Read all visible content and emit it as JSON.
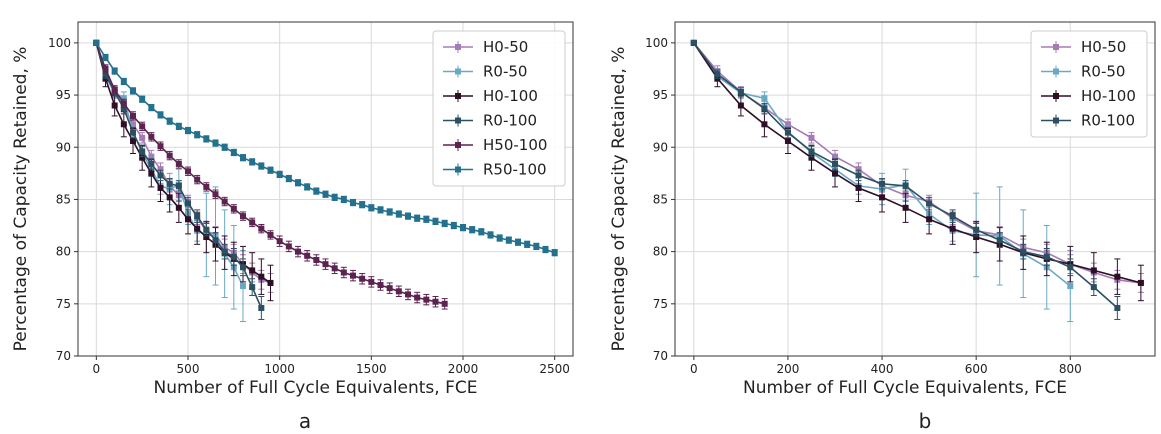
{
  "chart_data": [
    {
      "type": "line",
      "panel_label": "a",
      "xlabel": "Number of Full Cycle Equivalents, FCE",
      "ylabel": "Percentage of Capacity Retained, %",
      "xlim": [
        -100,
        2600
      ],
      "ylim": [
        70,
        102
      ],
      "xticks": [
        0,
        500,
        1000,
        1500,
        2000,
        2500
      ],
      "yticks": [
        70,
        75,
        80,
        85,
        90,
        95,
        100
      ],
      "grid": true,
      "legend_position": "top-right",
      "series": [
        {
          "name": "H0-50",
          "color": "#a57bb5",
          "marker": "square",
          "x": [
            0,
            50,
            100,
            150,
            200,
            250,
            300,
            350,
            400,
            450,
            500,
            550,
            600,
            650,
            700,
            750,
            800,
            850,
            900,
            950
          ],
          "y": [
            100,
            97.3,
            95.3,
            93.8,
            92.2,
            90.9,
            89.1,
            87.9,
            86.3,
            85.4,
            84.8,
            83.2,
            82.0,
            81.6,
            80.4,
            79.9,
            78.8,
            78.0,
            77.3,
            77.0
          ],
          "err": [
            0,
            0.5,
            0.5,
            0.6,
            0.5,
            0.5,
            0.6,
            0.6,
            0.6,
            0.6,
            0.6,
            0.6,
            0.8,
            0.8,
            0.8,
            0.8,
            0.9,
            0.9,
            0.9,
            0.9
          ]
        },
        {
          "name": "R0-50",
          "color": "#6aa8c4",
          "marker": "square",
          "x": [
            0,
            50,
            100,
            150,
            200,
            250,
            300,
            350,
            400,
            450,
            500,
            550,
            600,
            650,
            700,
            750,
            800
          ],
          "y": [
            100,
            96.8,
            95.2,
            94.7,
            91.5,
            89.5,
            87.9,
            86.3,
            86.0,
            86.4,
            83.6,
            82.0,
            81.6,
            81.5,
            79.8,
            78.5,
            76.7
          ],
          "err": [
            0,
            0.5,
            0.5,
            0.6,
            0.6,
            0.6,
            0.7,
            0.8,
            1.5,
            1.5,
            1.0,
            1.0,
            4.0,
            4.7,
            4.2,
            4.0,
            3.4
          ]
        },
        {
          "name": "H0-100",
          "color": "#2e0f26",
          "marker": "square",
          "x": [
            0,
            50,
            100,
            150,
            200,
            250,
            300,
            350,
            400,
            450,
            500,
            550,
            600,
            650,
            700,
            750,
            800,
            850,
            900,
            950
          ],
          "y": [
            100,
            96.6,
            94.0,
            92.2,
            90.6,
            89.0,
            87.5,
            86.1,
            85.2,
            84.2,
            83.1,
            82.2,
            81.4,
            80.7,
            79.9,
            79.3,
            78.8,
            78.2,
            77.6,
            77.0
          ],
          "err": [
            0,
            0.8,
            1.0,
            1.2,
            1.2,
            1.2,
            1.3,
            1.3,
            1.4,
            1.4,
            1.4,
            1.5,
            1.5,
            1.6,
            1.6,
            1.6,
            1.7,
            1.7,
            1.7,
            1.7
          ]
        },
        {
          "name": "R0-100",
          "color": "#2b5061",
          "marker": "square",
          "x": [
            0,
            50,
            100,
            150,
            200,
            250,
            300,
            350,
            400,
            450,
            500,
            550,
            600,
            650,
            700,
            750,
            800,
            850,
            900
          ],
          "y": [
            100,
            97.0,
            95.3,
            93.7,
            91.4,
            89.6,
            88.4,
            87.3,
            86.5,
            86.3,
            84.6,
            83.4,
            82.1,
            81.1,
            80.0,
            79.5,
            78.5,
            76.6,
            74.6
          ],
          "err": [
            0,
            0.4,
            0.4,
            0.5,
            0.5,
            0.5,
            0.5,
            0.5,
            0.5,
            0.5,
            0.6,
            0.6,
            0.6,
            0.7,
            0.7,
            0.8,
            0.8,
            0.8,
            1.1
          ]
        },
        {
          "name": "H50-100",
          "color": "#5c2350",
          "marker": "square",
          "x": [
            0,
            50,
            100,
            150,
            200,
            250,
            300,
            350,
            400,
            450,
            500,
            550,
            600,
            650,
            700,
            750,
            800,
            850,
            900,
            950,
            1000,
            1050,
            1100,
            1150,
            1200,
            1250,
            1300,
            1350,
            1400,
            1450,
            1500,
            1550,
            1600,
            1650,
            1700,
            1750,
            1800,
            1850,
            1900
          ],
          "y": [
            100,
            97.5,
            95.5,
            94.2,
            93.0,
            92.0,
            91.0,
            90.1,
            89.2,
            88.4,
            87.7,
            86.9,
            86.2,
            85.5,
            84.8,
            84.1,
            83.4,
            82.8,
            82.2,
            81.6,
            81.0,
            80.5,
            80.0,
            79.6,
            79.2,
            78.8,
            78.4,
            78.0,
            77.7,
            77.4,
            77.1,
            76.8,
            76.5,
            76.2,
            75.9,
            75.6,
            75.4,
            75.2,
            75.0
          ],
          "err": [
            0,
            0.4,
            0.4,
            0.4,
            0.4,
            0.4,
            0.4,
            0.4,
            0.4,
            0.4,
            0.4,
            0.4,
            0.4,
            0.4,
            0.4,
            0.4,
            0.4,
            0.4,
            0.4,
            0.4,
            0.5,
            0.5,
            0.5,
            0.5,
            0.5,
            0.5,
            0.5,
            0.5,
            0.5,
            0.5,
            0.5,
            0.5,
            0.5,
            0.5,
            0.5,
            0.5,
            0.5,
            0.5,
            0.5
          ]
        },
        {
          "name": "R50-100",
          "color": "#23708f",
          "marker": "square",
          "x": [
            0,
            50,
            100,
            150,
            200,
            250,
            300,
            350,
            400,
            450,
            500,
            550,
            600,
            650,
            700,
            750,
            800,
            850,
            900,
            950,
            1000,
            1050,
            1100,
            1150,
            1200,
            1250,
            1300,
            1350,
            1400,
            1450,
            1500,
            1550,
            1600,
            1650,
            1700,
            1750,
            1800,
            1850,
            1900,
            1950,
            2000,
            2050,
            2100,
            2150,
            2200,
            2250,
            2300,
            2350,
            2400,
            2450,
            2500
          ],
          "y": [
            100,
            98.6,
            97.3,
            96.3,
            95.4,
            94.6,
            93.8,
            93.1,
            92.5,
            92.0,
            91.6,
            91.2,
            90.8,
            90.4,
            90.0,
            89.5,
            89.0,
            88.6,
            88.2,
            87.8,
            87.4,
            87.0,
            86.6,
            86.2,
            85.8,
            85.5,
            85.2,
            85.0,
            84.7,
            84.5,
            84.2,
            84.0,
            83.8,
            83.6,
            83.4,
            83.2,
            83.1,
            82.9,
            82.7,
            82.5,
            82.3,
            82.1,
            81.9,
            81.6,
            81.3,
            81.1,
            80.9,
            80.7,
            80.5,
            80.2,
            79.9
          ],
          "err": [
            0,
            0.3,
            0.3,
            0.3,
            0.3,
            0.3,
            0.3,
            0.3,
            0.3,
            0.3,
            0.3,
            0.3,
            0.3,
            0.3,
            0.3,
            0.3,
            0.3,
            0.3,
            0.3,
            0.3,
            0.3,
            0.3,
            0.3,
            0.3,
            0.3,
            0.3,
            0.3,
            0.3,
            0.3,
            0.3,
            0.3,
            0.3,
            0.3,
            0.3,
            0.3,
            0.3,
            0.3,
            0.3,
            0.3,
            0.3,
            0.3,
            0.3,
            0.3,
            0.3,
            0.3,
            0.3,
            0.3,
            0.3,
            0.3,
            0.3,
            0.3
          ]
        }
      ]
    },
    {
      "type": "line",
      "panel_label": "b",
      "xlabel": "Number of Full Cycle Equivalents, FCE",
      "ylabel": "Percentage of Capacity Retained, %",
      "xlim": [
        -40,
        980
      ],
      "ylim": [
        70,
        102
      ],
      "xticks": [
        0,
        200,
        400,
        600,
        800
      ],
      "yticks": [
        70,
        75,
        80,
        85,
        90,
        95,
        100
      ],
      "grid": true,
      "legend_position": "top-right",
      "series": [
        {
          "name": "H0-50",
          "color": "#a57bb5",
          "marker": "square",
          "x": [
            0,
            50,
            100,
            150,
            200,
            250,
            300,
            350,
            400,
            450,
            500,
            550,
            600,
            650,
            700,
            750,
            800,
            850,
            900,
            950
          ],
          "y": [
            100,
            97.3,
            95.3,
            93.8,
            92.2,
            90.9,
            89.1,
            87.9,
            86.3,
            85.4,
            84.8,
            83.2,
            82.0,
            81.6,
            80.4,
            79.9,
            78.8,
            78.0,
            77.3,
            77.0
          ],
          "err": [
            0,
            0.5,
            0.5,
            0.6,
            0.5,
            0.5,
            0.6,
            0.6,
            0.6,
            0.6,
            0.6,
            0.6,
            0.8,
            0.8,
            0.8,
            0.8,
            0.9,
            0.9,
            0.9,
            0.9
          ]
        },
        {
          "name": "R0-50",
          "color": "#6aa8c4",
          "marker": "square",
          "x": [
            0,
            50,
            100,
            150,
            200,
            250,
            300,
            350,
            400,
            450,
            500,
            550,
            600,
            650,
            700,
            750,
            800
          ],
          "y": [
            100,
            96.8,
            95.2,
            94.7,
            91.5,
            89.5,
            87.9,
            86.3,
            86.0,
            86.4,
            83.6,
            82.0,
            81.6,
            81.5,
            79.8,
            78.5,
            76.7
          ],
          "err": [
            0,
            0.5,
            0.5,
            0.6,
            0.6,
            0.6,
            0.7,
            0.8,
            1.5,
            1.5,
            1.0,
            1.0,
            4.0,
            4.7,
            4.2,
            4.0,
            3.4
          ]
        },
        {
          "name": "H0-100",
          "color": "#2e0f26",
          "marker": "square",
          "x": [
            0,
            50,
            100,
            150,
            200,
            250,
            300,
            350,
            400,
            450,
            500,
            550,
            600,
            650,
            700,
            750,
            800,
            850,
            900,
            950
          ],
          "y": [
            100,
            96.6,
            94.0,
            92.2,
            90.6,
            89.0,
            87.5,
            86.1,
            85.2,
            84.2,
            83.1,
            82.2,
            81.4,
            80.7,
            79.9,
            79.3,
            78.8,
            78.2,
            77.6,
            77.0
          ],
          "err": [
            0,
            0.8,
            1.0,
            1.2,
            1.2,
            1.2,
            1.3,
            1.3,
            1.4,
            1.4,
            1.4,
            1.5,
            1.5,
            1.6,
            1.6,
            1.6,
            1.7,
            1.7,
            1.7,
            1.7
          ]
        },
        {
          "name": "R0-100",
          "color": "#2b5061",
          "marker": "square",
          "x": [
            0,
            50,
            100,
            150,
            200,
            250,
            300,
            350,
            400,
            450,
            500,
            550,
            600,
            650,
            700,
            750,
            800,
            850,
            900
          ],
          "y": [
            100,
            97.0,
            95.3,
            93.7,
            91.4,
            89.6,
            88.4,
            87.3,
            86.5,
            86.3,
            84.6,
            83.4,
            82.1,
            81.1,
            80.0,
            79.5,
            78.5,
            76.6,
            74.6
          ],
          "err": [
            0,
            0.4,
            0.4,
            0.5,
            0.5,
            0.5,
            0.5,
            0.5,
            0.5,
            0.5,
            0.6,
            0.6,
            0.6,
            0.7,
            0.7,
            0.8,
            0.8,
            0.8,
            1.1
          ]
        }
      ]
    }
  ]
}
